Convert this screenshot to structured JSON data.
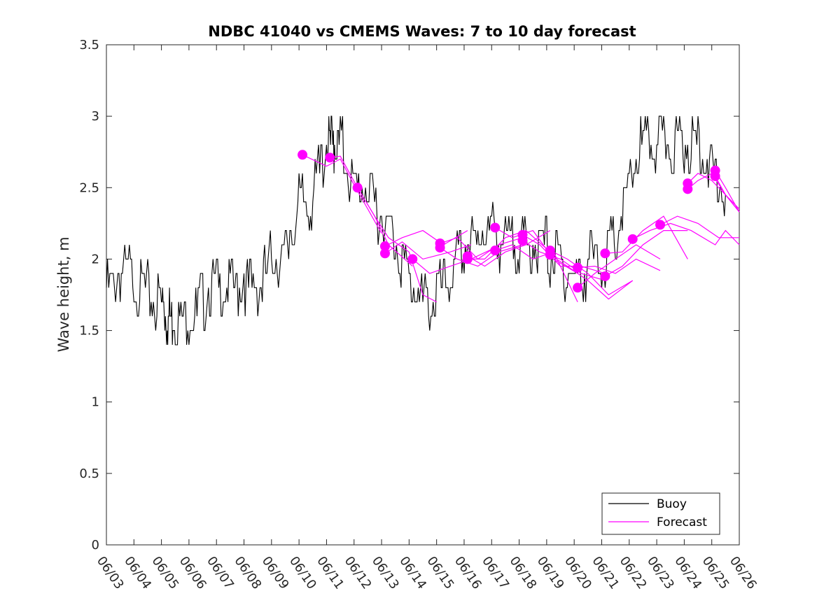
{
  "chart_data": {
    "type": "line",
    "title": "NDBC 41040 vs CMEMS Waves: 7 to 10 day forecast",
    "xlabel": "",
    "ylabel": "Wave height, m",
    "ylim": [
      0,
      3.5
    ],
    "yticks": [
      0,
      0.5,
      1,
      1.5,
      2,
      2.5,
      3,
      3.5
    ],
    "ytick_labels": [
      "0",
      "0.5",
      "1",
      "1.5",
      "2",
      "2.5",
      "3",
      "3.5"
    ],
    "xlim": [
      "06/03",
      "06/26"
    ],
    "xtick_labels": [
      "06/03",
      "06/04",
      "06/05",
      "06/06",
      "06/07",
      "06/08",
      "06/09",
      "06/10",
      "06/11",
      "06/12",
      "06/13",
      "06/14",
      "06/15",
      "06/16",
      "06/17",
      "06/18",
      "06/19",
      "06/20",
      "06/21",
      "06/22",
      "06/23",
      "06/24",
      "06/25",
      "06/26"
    ],
    "grid": false,
    "legend": {
      "placement": "bottom-right",
      "entries": [
        {
          "name": "Buoy",
          "color": "#000000"
        },
        {
          "name": "Forecast",
          "color": "#ff00ff"
        }
      ]
    },
    "series": [
      {
        "name": "Buoy",
        "color": "#000000",
        "style": "line",
        "x": [
          "06/03 00:00",
          "06/03 12:00",
          "06/04 00:00",
          "06/04 12:00",
          "06/05 00:00",
          "06/05 06:00",
          "06/05 12:00",
          "06/06 00:00",
          "06/06 12:00",
          "06/07 00:00",
          "06/07 12:00",
          "06/08 00:00",
          "06/08 12:00",
          "06/09 00:00",
          "06/09 12:00",
          "06/10 00:00",
          "06/10 12:00",
          "06/11 00:00",
          "06/11 06:00",
          "06/11 12:00",
          "06/12 00:00",
          "06/12 12:00",
          "06/13 00:00",
          "06/13 12:00",
          "06/14 00:00",
          "06/14 12:00",
          "06/15 00:00",
          "06/15 12:00",
          "06/16 00:00",
          "06/16 12:00",
          "06/17 00:00",
          "06/17 12:00",
          "06/18 00:00",
          "06/18 12:00",
          "06/19 00:00",
          "06/19 12:00",
          "06/20 00:00",
          "06/20 12:00",
          "06/21 00:00",
          "06/21 12:00",
          "06/22 00:00",
          "06/22 12:00",
          "06/23 00:00",
          "06/23 12:00",
          "06/24 00:00",
          "06/24 12:00",
          "06/25 00:00",
          "06/25 12:00"
        ],
        "values": [
          1.75,
          1.9,
          1.85,
          1.75,
          1.7,
          1.6,
          1.55,
          1.55,
          1.7,
          1.85,
          1.8,
          1.85,
          1.75,
          2.0,
          2.05,
          2.35,
          2.45,
          2.8,
          2.85,
          2.8,
          2.5,
          2.45,
          2.3,
          2.1,
          1.85,
          1.7,
          1.75,
          1.85,
          2.05,
          2.15,
          2.2,
          2.1,
          2.1,
          2.15,
          2.05,
          1.95,
          1.9,
          1.95,
          2.0,
          2.1,
          2.5,
          2.8,
          2.85,
          2.75,
          2.8,
          2.85,
          2.6,
          2.45
        ]
      }
    ],
    "forecasts": [
      {
        "x": [
          "06/10 03:00",
          "06/11 00:00",
          "06/11 12:00",
          "06/12 00:00",
          "06/12 12:00",
          "06/13 00:00"
        ],
        "values": [
          2.73,
          2.65,
          2.7,
          2.52,
          2.35,
          2.18
        ]
      },
      {
        "x": [
          "06/11 03:00",
          "06/11 12:00",
          "06/12 03:00",
          "06/12 18:00",
          "06/13 06:00",
          "06/14 03:00"
        ],
        "values": [
          2.71,
          2.72,
          2.5,
          2.3,
          2.1,
          1.95
        ]
      },
      {
        "x": [
          "06/12 03:00",
          "06/12 18:00",
          "06/13 06:00",
          "06/14 00:00",
          "06/14 12:00",
          "06/15 00:00"
        ],
        "values": [
          2.5,
          2.3,
          2.15,
          2.05,
          1.75,
          1.7
        ]
      },
      {
        "x": [
          "06/13 03:00",
          "06/13 18:00",
          "06/14 12:00",
          "06/15 06:00",
          "06/16 03:00"
        ],
        "values": [
          2.09,
          2.15,
          2.2,
          2.1,
          2.2
        ]
      },
      {
        "x": [
          "06/13 03:00",
          "06/13 18:00",
          "06/14 12:00",
          "06/15 12:00",
          "06/16 06:00"
        ],
        "values": [
          2.04,
          2.12,
          2.0,
          2.05,
          2.1
        ]
      },
      {
        "x": [
          "06/14 03:00",
          "06/14 18:00",
          "06/15 12:00",
          "06/16 06:00",
          "06/17 03:00"
        ],
        "values": [
          2.0,
          1.9,
          1.95,
          2.0,
          2.08
        ]
      },
      {
        "x": [
          "06/15 03:00",
          "06/15 18:00",
          "06/16 12:00",
          "06/17 06:00",
          "06/18 03:00"
        ],
        "values": [
          2.11,
          2.15,
          2.0,
          2.1,
          2.15
        ]
      },
      {
        "x": [
          "06/15 03:00",
          "06/15 18:00",
          "06/16 12:00",
          "06/17 06:00",
          "06/18 03:00"
        ],
        "values": [
          2.08,
          2.0,
          1.95,
          2.05,
          2.1
        ]
      },
      {
        "x": [
          "06/16 03:00",
          "06/16 18:00",
          "06/17 12:00",
          "06/18 06:00",
          "06/19 03:00"
        ],
        "values": [
          2.02,
          1.95,
          2.05,
          2.1,
          2.2
        ]
      },
      {
        "x": [
          "06/16 03:00",
          "06/16 18:00",
          "06/17 12:00",
          "06/18 06:00",
          "06/19 03:00"
        ],
        "values": [
          2.0,
          2.0,
          2.15,
          2.2,
          2.05
        ]
      },
      {
        "x": [
          "06/17 03:00",
          "06/17 18:00",
          "06/18 12:00",
          "06/19 06:00",
          "06/20 03:00"
        ],
        "values": [
          2.22,
          2.15,
          2.2,
          2.0,
          1.9
        ]
      },
      {
        "x": [
          "06/17 03:00",
          "06/17 18:00",
          "06/18 12:00",
          "06/19 06:00",
          "06/20 03:00"
        ],
        "values": [
          2.06,
          2.1,
          2.0,
          2.05,
          1.7
        ]
      },
      {
        "x": [
          "06/18 03:00",
          "06/18 18:00",
          "06/19 12:00",
          "06/20 06:00",
          "06/21 03:00"
        ],
        "values": [
          2.17,
          2.1,
          1.95,
          1.95,
          1.9
        ]
      },
      {
        "x": [
          "06/18 03:00",
          "06/18 18:00",
          "06/19 12:00",
          "06/20 06:00",
          "06/21 03:00"
        ],
        "values": [
          2.13,
          2.05,
          2.0,
          1.9,
          1.85
        ]
      },
      {
        "x": [
          "06/19 03:00",
          "06/19 18:00",
          "06/20 12:00",
          "06/21 06:00",
          "06/22 03:00"
        ],
        "values": [
          2.06,
          2.0,
          1.9,
          1.75,
          1.85
        ]
      },
      {
        "x": [
          "06/19 03:00",
          "06/19 18:00",
          "06/20 12:00",
          "06/21 06:00",
          "06/22 03:00"
        ],
        "values": [
          2.03,
          1.95,
          1.85,
          1.72,
          1.85
        ]
      },
      {
        "x": [
          "06/20 03:00",
          "06/20 18:00",
          "06/21 12:00",
          "06/22 06:00",
          "06/23 03:00"
        ],
        "values": [
          1.94,
          1.95,
          1.9,
          2.0,
          1.92
        ]
      },
      {
        "x": [
          "06/20 03:00",
          "06/20 18:00",
          "06/21 12:00",
          "06/22 06:00",
          "06/23 03:00"
        ],
        "values": [
          1.8,
          1.9,
          2.0,
          2.1,
          2.0
        ]
      },
      {
        "x": [
          "06/21 03:00",
          "06/21 18:00",
          "06/22 12:00",
          "06/23 06:00",
          "06/24 03:00"
        ],
        "values": [
          2.04,
          2.05,
          2.2,
          2.3,
          2.0
        ]
      },
      {
        "x": [
          "06/21 03:00",
          "06/21 18:00",
          "06/22 12:00",
          "06/23 06:00",
          "06/24 03:00"
        ],
        "values": [
          1.88,
          1.95,
          2.1,
          2.2,
          2.2
        ]
      },
      {
        "x": [
          "06/22 03:00",
          "06/22 18:00",
          "06/23 12:00",
          "06/24 06:00",
          "06/25 03:00",
          "06/25 12:00",
          "06/26 00:00"
        ],
        "values": [
          2.14,
          2.2,
          2.25,
          2.2,
          2.1,
          2.2,
          2.1
        ]
      },
      {
        "x": [
          "06/23 03:00",
          "06/23 18:00",
          "06/24 12:00",
          "06/25 06:00",
          "06/26 00:00"
        ],
        "values": [
          2.24,
          2.3,
          2.25,
          2.15,
          2.15
        ]
      },
      {
        "x": [
          "06/24 03:00",
          "06/24 12:00",
          "06/25 00:00",
          "06/25 12:00",
          "06/26 00:00"
        ],
        "values": [
          2.53,
          2.6,
          2.55,
          2.45,
          2.33
        ]
      },
      {
        "x": [
          "06/24 03:00",
          "06/24 12:00",
          "06/25 00:00",
          "06/25 12:00",
          "06/26 00:00"
        ],
        "values": [
          2.49,
          2.55,
          2.6,
          2.45,
          2.33
        ]
      },
      {
        "x": [
          "06/25 03:00",
          "06/25 12:00",
          "06/26 00:00"
        ],
        "values": [
          2.62,
          2.5,
          2.33
        ]
      },
      {
        "x": [
          "06/25 03:00",
          "06/25 12:00",
          "06/26 00:00"
        ],
        "values": [
          2.58,
          2.45,
          2.35
        ]
      }
    ]
  }
}
